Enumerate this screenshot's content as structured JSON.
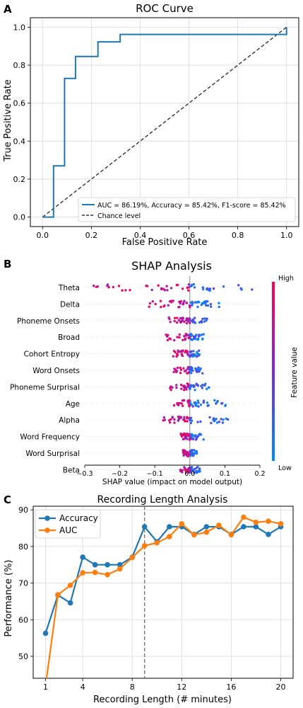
{
  "chart_data": [
    {
      "panel_label": "A",
      "type": "line",
      "title": "ROC Curve",
      "xlabel": "False Positive Rate",
      "ylabel": "True Positive Rate",
      "xlim": [
        -0.05,
        1.05
      ],
      "ylim": [
        -0.05,
        1.05
      ],
      "xticks": [
        "0.0",
        "0.2",
        "0.4",
        "0.6",
        "0.8",
        "1.0"
      ],
      "yticks": [
        "0.0",
        "0.2",
        "0.4",
        "0.6",
        "0.8",
        "1.0"
      ],
      "grid": true,
      "legend_position": "lower right",
      "series": [
        {
          "name": "AUC =  86.19%, Accuracy =  85.42%, F1-score = 85.42%",
          "color": "#1f77b4",
          "x": [
            0,
            0.045,
            0.045,
            0.045,
            0.09,
            0.09,
            0.135,
            0.135,
            0.227,
            0.227,
            0.318,
            0.318,
            1.0,
            1.0
          ],
          "y": [
            0,
            0.0,
            0.27,
            0.27,
            0.27,
            0.73,
            0.73,
            0.846,
            0.846,
            0.923,
            0.923,
            0.962,
            0.962,
            1.0
          ]
        },
        {
          "name": "Chance level",
          "color": "#333333",
          "dashed": true,
          "x": [
            0,
            1
          ],
          "y": [
            0,
            1
          ]
        }
      ]
    },
    {
      "panel_label": "B",
      "type": "scatter",
      "title": "SHAP Analysis",
      "xlabel": "SHAP value (impact on model output)",
      "xlim": [
        -0.3,
        0.2
      ],
      "xticks": [
        "−0.3",
        "−0.2",
        "−0.1",
        "0.0",
        "0.1",
        "0.2"
      ],
      "features": [
        "Theta",
        "Delta",
        "Phoneme Onsets",
        "Broad",
        "Cohort Entropy",
        "Word Onsets",
        "Phoneme Surprisal",
        "Age",
        "Alpha",
        "Word Frequency",
        "Word Surprisal",
        "Beta"
      ],
      "feature_spread": [
        [
          -0.28,
          0.18
        ],
        [
          -0.13,
          0.09
        ],
        [
          -0.06,
          0.05
        ],
        [
          -0.07,
          0.04
        ],
        [
          -0.05,
          0.03
        ],
        [
          -0.05,
          0.04
        ],
        [
          -0.06,
          0.06
        ],
        [
          -0.05,
          0.11
        ],
        [
          -0.08,
          0.11
        ],
        [
          -0.03,
          0.04
        ],
        [
          -0.02,
          0.02
        ],
        [
          -0.03,
          0.03
        ]
      ],
      "colorbar": {
        "label": "Feature value",
        "high": "High",
        "low": "Low",
        "high_color": "#ff0052",
        "low_color": "#008bfb"
      }
    },
    {
      "panel_label": "C",
      "type": "line",
      "title": "Recording Length Analysis",
      "xlabel": "Recording Length (# minutes)",
      "ylabel": "Performance (%)",
      "xlim": [
        0,
        21
      ],
      "ylim": [
        44,
        91
      ],
      "xticks": [
        "1",
        "4",
        "8",
        "12",
        "16",
        "20"
      ],
      "yticks": [
        "50",
        "60",
        "70",
        "80",
        "90"
      ],
      "vline_x": 9,
      "grid": true,
      "legend_position": "upper left",
      "x": [
        1,
        2,
        3,
        4,
        5,
        6,
        7,
        8,
        9,
        10,
        11,
        12,
        13,
        14,
        15,
        16,
        17,
        18,
        19,
        20
      ],
      "series": [
        {
          "name": "Accuracy",
          "color": "#1f77b4",
          "values": [
            56.3,
            66.7,
            64.6,
            77.1,
            75.0,
            75.0,
            75.0,
            77.1,
            85.4,
            81.3,
            85.4,
            85.4,
            83.3,
            85.4,
            85.4,
            83.3,
            85.4,
            85.4,
            83.3,
            85.4
          ]
        },
        {
          "name": "AUC",
          "color": "#ff7f0e",
          "values": [
            42.0,
            66.8,
            69.4,
            72.8,
            72.9,
            72.3,
            73.9,
            77.0,
            80.2,
            81.0,
            82.7,
            86.2,
            83.2,
            83.9,
            85.8,
            83.2,
            88.0,
            86.6,
            86.9,
            86.2
          ]
        }
      ]
    }
  ]
}
